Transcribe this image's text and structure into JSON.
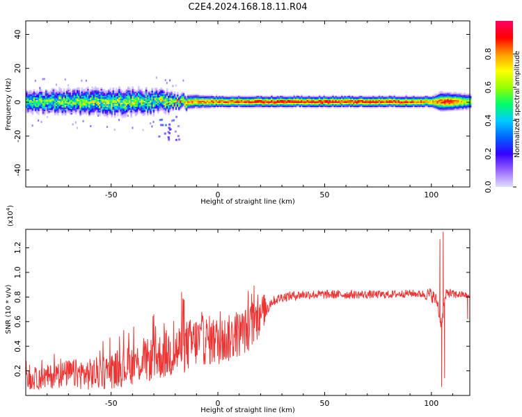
{
  "title": "C2E4.2024.168.18.11.R04",
  "colors": {
    "snr_line": "#ee3333",
    "colorbar": [
      "#e0e0ff",
      "#9966ff",
      "#3300ff",
      "#0066ff",
      "#00ccff",
      "#00ff66",
      "#99ff00",
      "#ffff00",
      "#ff9900",
      "#ff0000",
      "#ff0066"
    ]
  },
  "chart_data": [
    {
      "type": "heatmap",
      "xlabel": "Height of straight line (km)",
      "ylabel": "Frequency (Hz)",
      "xlim": [
        -90,
        118
      ],
      "ylim": [
        -50,
        48
      ],
      "xticks": [
        -50,
        0,
        50,
        100
      ],
      "yticks": [
        40,
        20,
        0,
        -20,
        -40
      ],
      "colorbar": {
        "label": "Normalized spectral amplitude",
        "range": [
          0,
          1
        ],
        "ticks": [
          "0.0",
          "0.2",
          "0.4",
          "0.6",
          "0.8"
        ],
        "tick_values": [
          0,
          0.2,
          0.4,
          0.6,
          0.8
        ]
      },
      "band": {
        "center_hz": 0,
        "halfwidth_hz_by_x": [
          [
            -90,
            6
          ],
          [
            -60,
            7
          ],
          [
            -40,
            7
          ],
          [
            -25,
            6
          ],
          [
            -20,
            4
          ],
          [
            0,
            3
          ],
          [
            50,
            3
          ],
          [
            100,
            3
          ],
          [
            104,
            5
          ],
          [
            118,
            4
          ]
        ],
        "peak_amplitude_by_x": [
          [
            -90,
            0.55
          ],
          [
            -70,
            0.6
          ],
          [
            -50,
            0.65
          ],
          [
            -30,
            0.6
          ],
          [
            -15,
            0.8
          ],
          [
            0,
            0.85
          ],
          [
            20,
            0.9
          ],
          [
            50,
            0.92
          ],
          [
            85,
            0.88
          ],
          [
            100,
            0.8
          ],
          [
            108,
            0.95
          ],
          [
            118,
            0.6
          ]
        ]
      }
    },
    {
      "type": "line",
      "xlabel": "Height of straight line (km)",
      "ylabel": "SNR (10 * v/v)",
      "y_multiplier": "(x10",
      "y_multiplier_exp": "4",
      "y_multiplier_close": ")",
      "xlim": [
        -90,
        118
      ],
      "ylim": [
        0,
        1.35
      ],
      "xticks": [
        -50,
        0,
        50,
        100
      ],
      "yticks": [
        0.2,
        0.4,
        0.6,
        0.8,
        1.0,
        1.2
      ],
      "ytick_labels": [
        "0.2",
        "0.4",
        "0.6",
        "0.8",
        "1.0",
        "1.2"
      ],
      "series": [
        {
          "trend": {
            "x": [
              -90,
              -80,
              -70,
              -60,
              -50,
              -40,
              -30,
              -25,
              -20,
              -15,
              -10,
              -5,
              0,
              5,
              10,
              15,
              20,
              25,
              30,
              40,
              50,
              60,
              70,
              80,
              90,
              98,
              100,
              101,
              102,
              103,
              104,
              105,
              106,
              107,
              108,
              110,
              115,
              118
            ],
            "y": [
              0.12,
              0.15,
              0.18,
              0.17,
              0.2,
              0.25,
              0.3,
              0.33,
              0.36,
              0.4,
              0.44,
              0.45,
              0.44,
              0.46,
              0.5,
              0.55,
              0.66,
              0.76,
              0.8,
              0.82,
              0.82,
              0.82,
              0.82,
              0.82,
              0.83,
              0.82,
              0.82,
              0.8,
              0.78,
              0.75,
              0.6,
              0.6,
              0.75,
              0.82,
              0.84,
              0.82,
              0.82,
              0.8
            ]
          },
          "noise": {
            "x": [
              -90,
              -30,
              -20,
              20,
              25,
              95,
              100,
              118
            ],
            "amp": [
              0.08,
              0.18,
              0.22,
              0.18,
              0.04,
              0.03,
              0.06,
              0.02
            ]
          },
          "spikes": [
            {
              "x": -17,
              "y": 0.84
            },
            {
              "x": -30,
              "y": 0.66
            },
            {
              "x": 104,
              "y": 1.27
            },
            {
              "x": 104.8,
              "y": 0.07
            },
            {
              "x": 105.5,
              "y": 1.33
            },
            {
              "x": 106.2,
              "y": 0.14
            },
            {
              "x": 117,
              "y": 0.62
            }
          ]
        }
      ]
    }
  ]
}
